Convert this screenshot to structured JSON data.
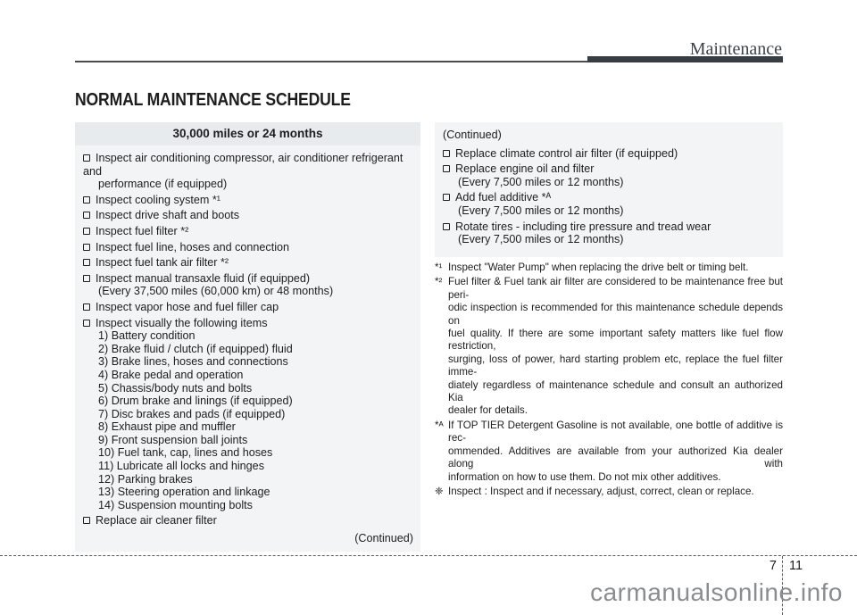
{
  "header": {
    "section_title": "Maintenance"
  },
  "page_title": "NORMAL MAINTENANCE SCHEDULE",
  "schedule_table": {
    "header": "30,000 miles or 24 months",
    "items": [
      {
        "lines": [
          "Inspect air conditioning compressor, air conditioner refrigerant and",
          "performance (if equipped)"
        ]
      },
      {
        "lines": [
          "Inspect cooling system *¹"
        ]
      },
      {
        "lines": [
          "Inspect drive shaft and boots"
        ]
      },
      {
        "lines": [
          "Inspect fuel filter *²"
        ]
      },
      {
        "lines": [
          "Inspect fuel line, hoses and connection"
        ]
      },
      {
        "lines": [
          "Inspect fuel tank air filter *²"
        ]
      },
      {
        "lines": [
          "Inspect manual transaxle fluid (if equipped)",
          "(Every 37,500 miles (60,000 km) or 48 months)"
        ]
      },
      {
        "lines": [
          "Inspect vapor hose and fuel filler cap"
        ]
      },
      {
        "lines": [
          "Inspect visually the following items",
          "1) Battery condition",
          "2) Brake fluid / clutch (if equipped) fluid",
          "3) Brake lines, hoses and connections",
          "4) Brake pedal and operation",
          "5) Chassis/body nuts and bolts",
          "6) Drum brake and linings (if equipped)",
          "7) Disc brakes and pads (if equipped)",
          "8) Exhaust pipe and muffler",
          "9) Front suspension ball joints",
          "10) Fuel tank, cap, lines and hoses",
          "11) Lubricate all locks and hinges",
          "12) Parking brakes",
          "13) Steering operation and linkage",
          "14) Suspension mounting bolts"
        ]
      },
      {
        "lines": [
          "Replace air cleaner filter"
        ]
      }
    ],
    "continued_note": "(Continued)"
  },
  "continued_panel": {
    "label": "(Continued)",
    "items": [
      {
        "lines": [
          "Replace climate control air filter (if equipped)"
        ]
      },
      {
        "lines": [
          "Replace engine oil and filter",
          "(Every 7,500 miles or 12 months)"
        ]
      },
      {
        "lines": [
          "Add fuel additive *ᴬ",
          "(Every 7,500 miles or 12 months)"
        ]
      },
      {
        "lines": [
          "Rotate tires - including tire pressure and tread wear",
          "(Every 7,500 miles or 12 months)"
        ]
      }
    ]
  },
  "footnotes": [
    {
      "marker": "*¹",
      "lines": [
        "Inspect \"Water Pump\" when replacing the drive belt or timing belt."
      ]
    },
    {
      "marker": "*²",
      "lines": [
        "Fuel filter & Fuel tank air filter are considered to be maintenance free but peri-",
        "odic inspection is recommended for this maintenance schedule depends on",
        "fuel quality. If there are some important safety matters like fuel flow restriction,",
        "surging, loss of power, hard starting problem etc, replace the fuel filter imme-",
        "diately regardless of maintenance schedule and consult an authorized Kia",
        "dealer for details."
      ]
    },
    {
      "marker": "*ᴬ",
      "lines": [
        "If TOP TIER Detergent Gasoline is not available, one bottle of additive is rec-",
        "ommended. Additives are available from your authorized Kia dealer along with",
        "information on how to use them. Do not mix other additives."
      ]
    },
    {
      "marker": "❈",
      "lines": [
        "Inspect : Inspect and if necessary, adjust, correct, clean or replace."
      ]
    }
  ],
  "footer": {
    "chapter_number": "7",
    "page_number": "11",
    "watermark": "carmanualsonline.info"
  },
  "colors": {
    "text": "#1d1d1f",
    "table_header_bg": "#e7ebee",
    "panel_bg": "#f3f4f5",
    "header_bar": "#363d43",
    "watermark": "#8a8d8f"
  }
}
